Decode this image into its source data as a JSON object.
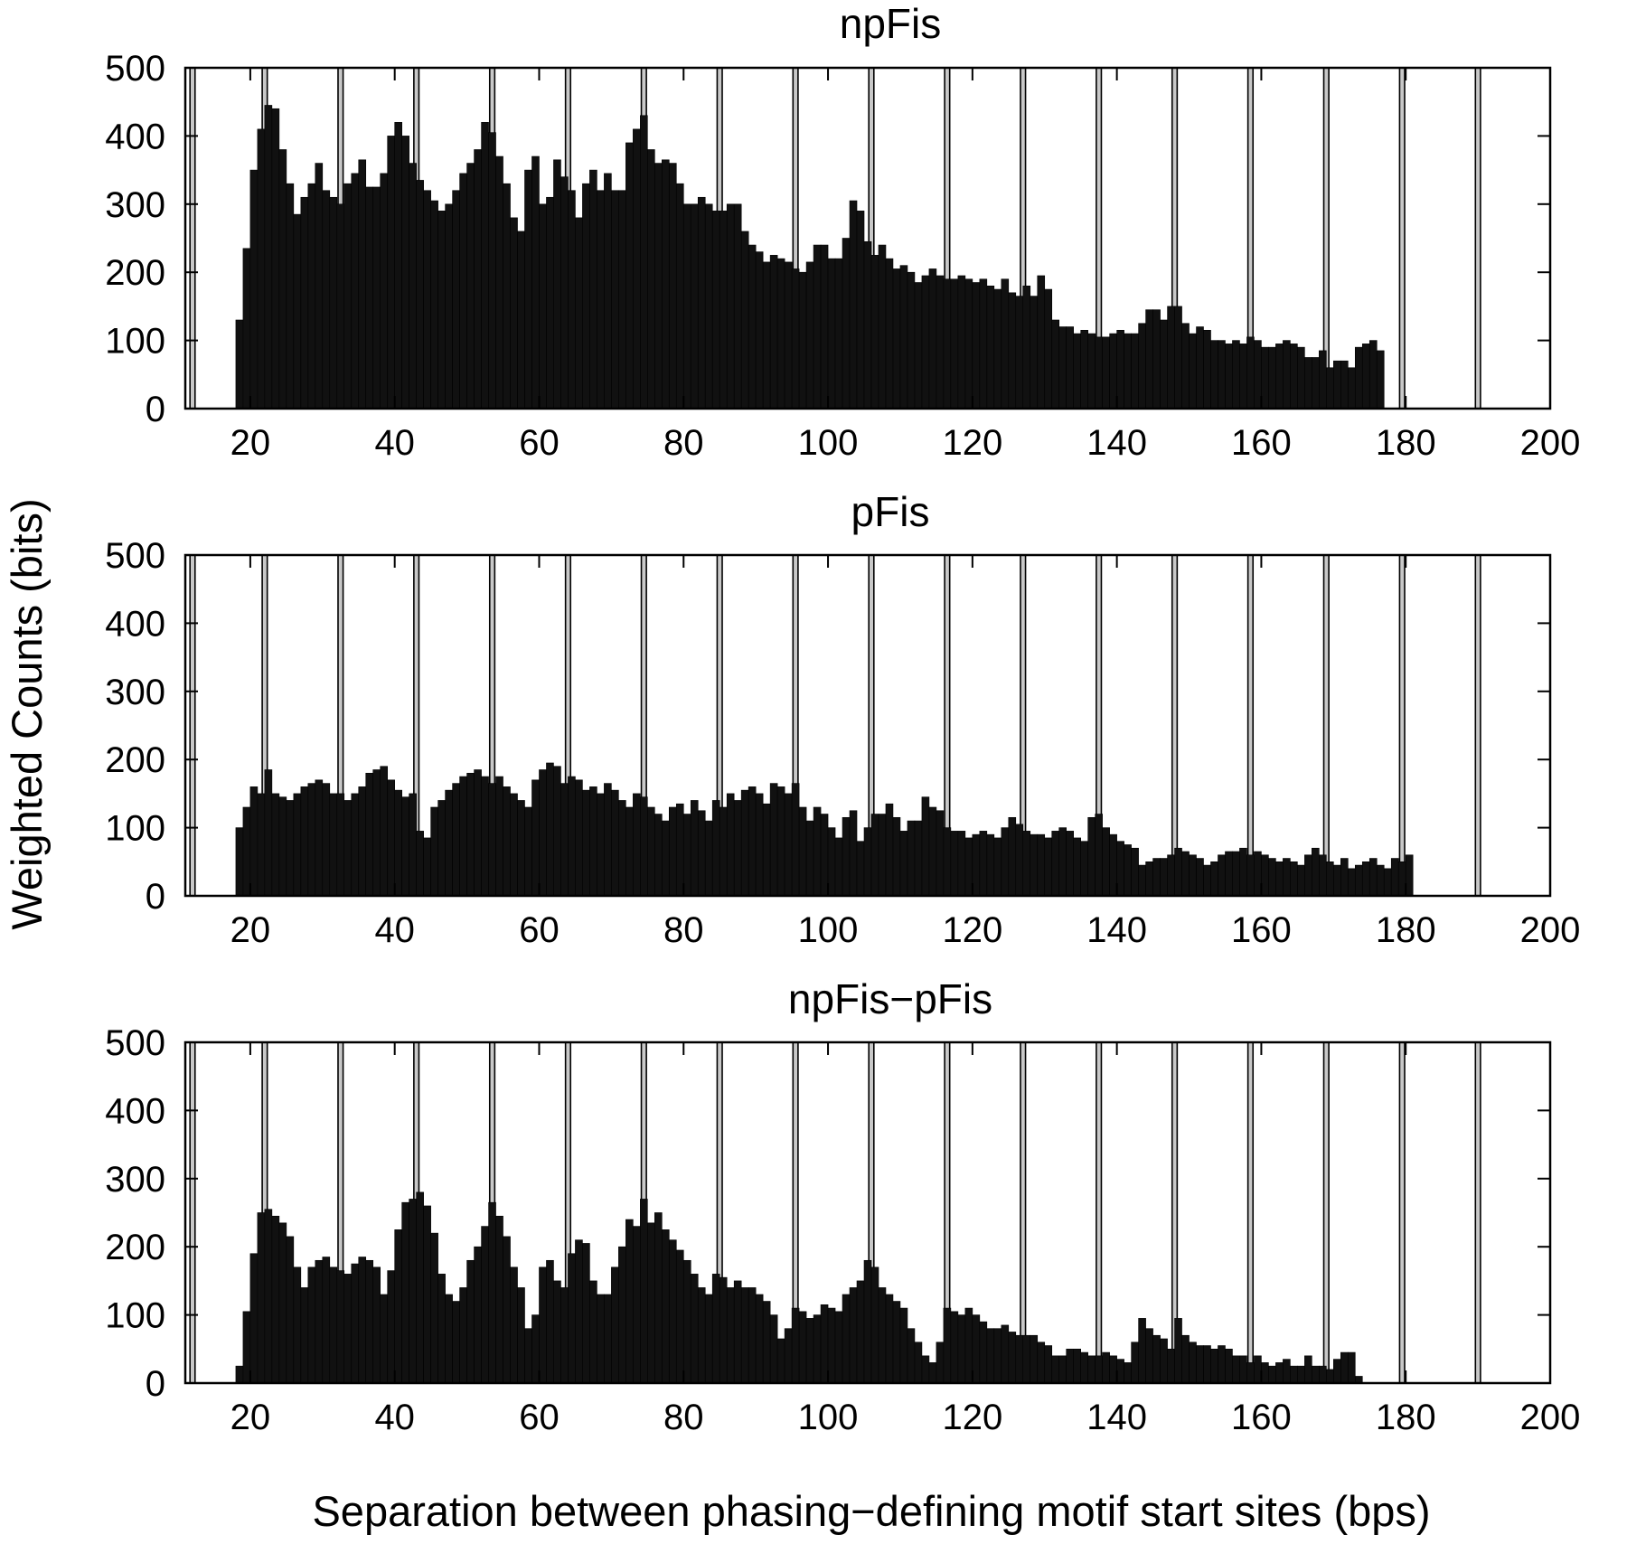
{
  "figure": {
    "ylabel": "Weighted Counts (bits)",
    "xlabel": "Separation between phasing−defining motif start sites (bps)"
  },
  "chart_data": [
    {
      "type": "bar",
      "title": "npFis",
      "xlim": [
        11,
        200
      ],
      "ylim": [
        0,
        500
      ],
      "xticks": [
        20,
        40,
        60,
        80,
        100,
        120,
        140,
        160,
        180,
        200
      ],
      "yticks": [
        0,
        100,
        200,
        300,
        400,
        500
      ],
      "phase_marker_positions": [
        12,
        22,
        32.5,
        43,
        53.5,
        64,
        74.5,
        85,
        95.5,
        106,
        116.5,
        127,
        137.5,
        148,
        158.5,
        169,
        179.5,
        190
      ],
      "x_start": 18,
      "values": [
        130,
        235,
        350,
        410,
        445,
        440,
        380,
        330,
        285,
        310,
        330,
        360,
        320,
        310,
        300,
        330,
        345,
        365,
        325,
        325,
        345,
        400,
        420,
        400,
        360,
        335,
        320,
        305,
        290,
        300,
        320,
        345,
        360,
        380,
        420,
        405,
        370,
        330,
        280,
        260,
        350,
        370,
        300,
        310,
        365,
        340,
        320,
        280,
        330,
        350,
        320,
        345,
        320,
        320,
        390,
        410,
        430,
        380,
        360,
        365,
        360,
        330,
        300,
        300,
        310,
        300,
        290,
        290,
        300,
        300,
        260,
        240,
        230,
        215,
        225,
        220,
        215,
        205,
        200,
        215,
        240,
        240,
        220,
        220,
        250,
        305,
        290,
        245,
        225,
        240,
        220,
        205,
        210,
        200,
        185,
        195,
        205,
        195,
        190,
        190,
        195,
        190,
        185,
        190,
        180,
        175,
        190,
        170,
        165,
        180,
        165,
        195,
        175,
        130,
        120,
        120,
        110,
        115,
        110,
        105,
        105,
        110,
        115,
        110,
        110,
        125,
        145,
        145,
        130,
        150,
        150,
        125,
        110,
        120,
        115,
        100,
        100,
        95,
        100,
        95,
        105,
        100,
        90,
        90,
        95,
        100,
        95,
        90,
        75,
        75,
        85,
        60,
        70,
        70,
        60,
        90,
        95,
        100,
        85
      ]
    },
    {
      "type": "bar",
      "title": "pFis",
      "xlim": [
        11,
        200
      ],
      "ylim": [
        0,
        500
      ],
      "xticks": [
        20,
        40,
        60,
        80,
        100,
        120,
        140,
        160,
        180,
        200
      ],
      "yticks": [
        0,
        100,
        200,
        300,
        400,
        500
      ],
      "phase_marker_positions": [
        12,
        22,
        32.5,
        43,
        53.5,
        64,
        74.5,
        85,
        95.5,
        106,
        116.5,
        127,
        137.5,
        148,
        158.5,
        169,
        179.5,
        190
      ],
      "x_start": 18,
      "values": [
        100,
        130,
        160,
        150,
        185,
        150,
        145,
        140,
        150,
        160,
        165,
        170,
        165,
        150,
        150,
        140,
        150,
        160,
        180,
        185,
        190,
        170,
        155,
        145,
        150,
        95,
        85,
        130,
        140,
        155,
        165,
        175,
        180,
        185,
        175,
        165,
        175,
        160,
        150,
        140,
        130,
        170,
        185,
        195,
        190,
        165,
        175,
        170,
        155,
        160,
        150,
        165,
        155,
        140,
        130,
        150,
        145,
        130,
        120,
        110,
        130,
        135,
        120,
        140,
        125,
        110,
        140,
        130,
        150,
        140,
        155,
        160,
        150,
        135,
        165,
        160,
        150,
        165,
        130,
        110,
        130,
        120,
        100,
        85,
        115,
        125,
        80,
        100,
        120,
        120,
        135,
        115,
        95,
        110,
        110,
        145,
        130,
        125,
        100,
        95,
        95,
        85,
        90,
        95,
        90,
        85,
        100,
        115,
        105,
        95,
        90,
        90,
        85,
        95,
        100,
        95,
        85,
        80,
        115,
        120,
        100,
        90,
        80,
        75,
        70,
        45,
        50,
        55,
        55,
        60,
        70,
        65,
        60,
        55,
        45,
        50,
        60,
        65,
        65,
        70,
        60,
        65,
        60,
        55,
        50,
        55,
        50,
        45,
        60,
        70,
        60,
        50,
        45,
        55,
        40,
        45,
        50,
        55,
        45,
        40,
        55,
        50,
        60
      ]
    },
    {
      "type": "bar",
      "title": "npFis−pFis",
      "xlim": [
        11,
        200
      ],
      "ylim": [
        0,
        500
      ],
      "xticks": [
        20,
        40,
        60,
        80,
        100,
        120,
        140,
        160,
        180,
        200
      ],
      "yticks": [
        0,
        100,
        200,
        300,
        400,
        500
      ],
      "phase_marker_positions": [
        12,
        22,
        32.5,
        43,
        53.5,
        64,
        74.5,
        85,
        95.5,
        106,
        116.5,
        127,
        137.5,
        148,
        158.5,
        169,
        179.5,
        190
      ],
      "x_start": 18,
      "values": [
        25,
        105,
        190,
        250,
        255,
        245,
        235,
        215,
        170,
        140,
        170,
        180,
        185,
        170,
        165,
        160,
        175,
        185,
        180,
        170,
        130,
        165,
        225,
        265,
        270,
        280,
        260,
        220,
        160,
        130,
        120,
        140,
        180,
        200,
        230,
        265,
        245,
        215,
        170,
        140,
        80,
        100,
        170,
        180,
        150,
        140,
        190,
        210,
        205,
        150,
        130,
        130,
        170,
        200,
        240,
        230,
        270,
        235,
        250,
        225,
        210,
        195,
        180,
        160,
        140,
        130,
        160,
        155,
        140,
        150,
        140,
        140,
        130,
        120,
        100,
        65,
        80,
        110,
        105,
        95,
        100,
        115,
        110,
        105,
        130,
        140,
        150,
        180,
        170,
        140,
        130,
        120,
        110,
        80,
        60,
        40,
        30,
        60,
        110,
        105,
        100,
        110,
        100,
        90,
        80,
        80,
        85,
        75,
        70,
        70,
        70,
        60,
        55,
        40,
        40,
        50,
        50,
        45,
        40,
        40,
        45,
        40,
        35,
        30,
        60,
        95,
        80,
        70,
        65,
        50,
        95,
        70,
        60,
        55,
        55,
        50,
        55,
        50,
        40,
        40,
        30,
        40,
        30,
        25,
        30,
        35,
        25,
        25,
        40,
        25,
        25,
        20,
        35,
        45,
        45,
        10
      ]
    }
  ]
}
